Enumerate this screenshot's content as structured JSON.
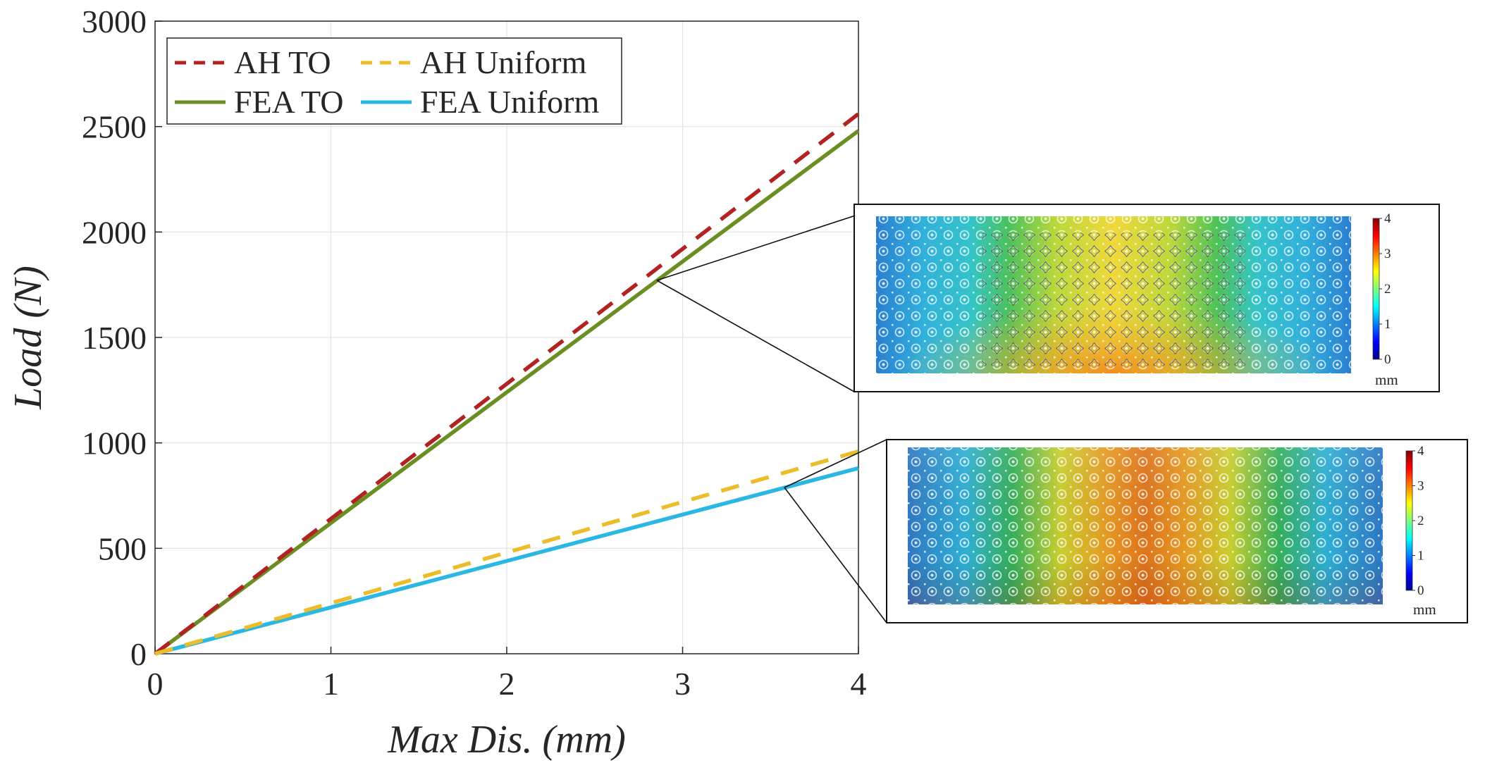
{
  "chart_data": {
    "type": "line",
    "xlabel": "Max Dis. (mm)",
    "ylabel": "Load (N)",
    "xlim": [
      0,
      4
    ],
    "ylim": [
      0,
      3000
    ],
    "xticks": [
      "0",
      "1",
      "2",
      "3",
      "4"
    ],
    "yticks": [
      "0",
      "500",
      "1000",
      "1500",
      "2000",
      "2500",
      "3000"
    ],
    "grid": true,
    "legend_position": "top-left",
    "series": [
      {
        "name": "AH TO",
        "style": "dashed",
        "color": "#b22222",
        "x": [
          0,
          4
        ],
        "y": [
          0,
          2560
        ]
      },
      {
        "name": "AH Uniform",
        "style": "dashed",
        "color": "#ebbd2a",
        "x": [
          0,
          4
        ],
        "y": [
          0,
          960
        ]
      },
      {
        "name": "FEA TO",
        "style": "solid",
        "color": "#6b8e23",
        "x": [
          0,
          4
        ],
        "y": [
          0,
          2480
        ]
      },
      {
        "name": "FEA Uniform",
        "style": "solid",
        "color": "#2ab7e3",
        "x": [
          0,
          4
        ],
        "y": [
          0,
          880
        ]
      }
    ],
    "insets": [
      {
        "name": "TO displacement contour",
        "callout_x": 2.87,
        "callout_y": 1780,
        "colorbar_ticks": [
          "4",
          "3",
          "2",
          "1",
          "0"
        ],
        "colorbar_unit": "mm"
      },
      {
        "name": "Uniform displacement contour",
        "callout_x": 3.6,
        "callout_y": 790,
        "colorbar_ticks": [
          "4",
          "3",
          "2",
          "1",
          "0"
        ],
        "colorbar_unit": "mm"
      }
    ]
  }
}
